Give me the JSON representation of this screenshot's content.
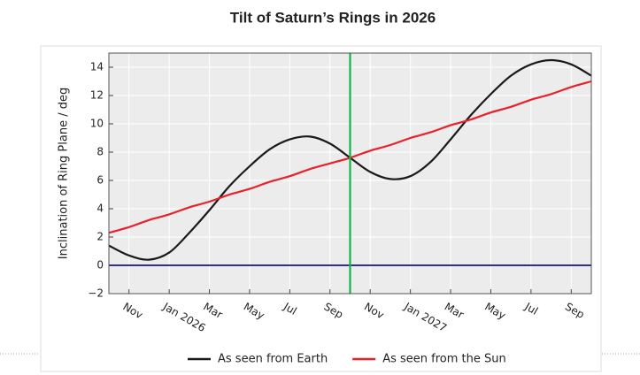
{
  "chart_data": {
    "type": "line",
    "title": "Tilt of Saturn’s Rings in 2026",
    "y_label": "Inclination of Ring Plane / deg",
    "categories": [
      null,
      "Nov",
      null,
      "Jan 2026",
      null,
      "Mar",
      null,
      "May",
      null,
      "Jul",
      null,
      "Sep",
      null,
      "Nov",
      null,
      "Jan 2027",
      null,
      "Mar",
      null,
      "May",
      null,
      "Jul",
      null,
      "Sep",
      null
    ],
    "series": [
      {
        "name": "As seen from Earth",
        "color": "#1a1a1a",
        "values": [
          1.4,
          0.7,
          0.4,
          0.9,
          2.3,
          3.9,
          5.6,
          7.0,
          8.2,
          8.9,
          9.1,
          8.6,
          7.6,
          6.6,
          6.1,
          6.3,
          7.3,
          8.9,
          10.6,
          12.1,
          13.4,
          14.2,
          14.5,
          14.2,
          13.4
        ]
      },
      {
        "name": "As seen from the Sun",
        "color": "#e8212b",
        "values": [
          2.3,
          2.7,
          3.2,
          3.6,
          4.1,
          4.5,
          5.0,
          5.4,
          5.9,
          6.3,
          6.8,
          7.2,
          7.6,
          8.1,
          8.5,
          9.0,
          9.4,
          9.9,
          10.3,
          10.8,
          11.2,
          11.7,
          12.1,
          12.6,
          13.0
        ]
      }
    ],
    "hline": {
      "value": 0,
      "color": "#2e3192"
    },
    "vline": {
      "x_index": 12,
      "color": "#16b34a"
    },
    "ylim": [
      -2,
      15
    ],
    "yticks": [
      {
        "value": -2,
        "label": "−2"
      },
      0,
      2,
      4,
      6,
      8,
      10,
      12,
      14
    ],
    "grid": true,
    "legend": "bottom"
  }
}
